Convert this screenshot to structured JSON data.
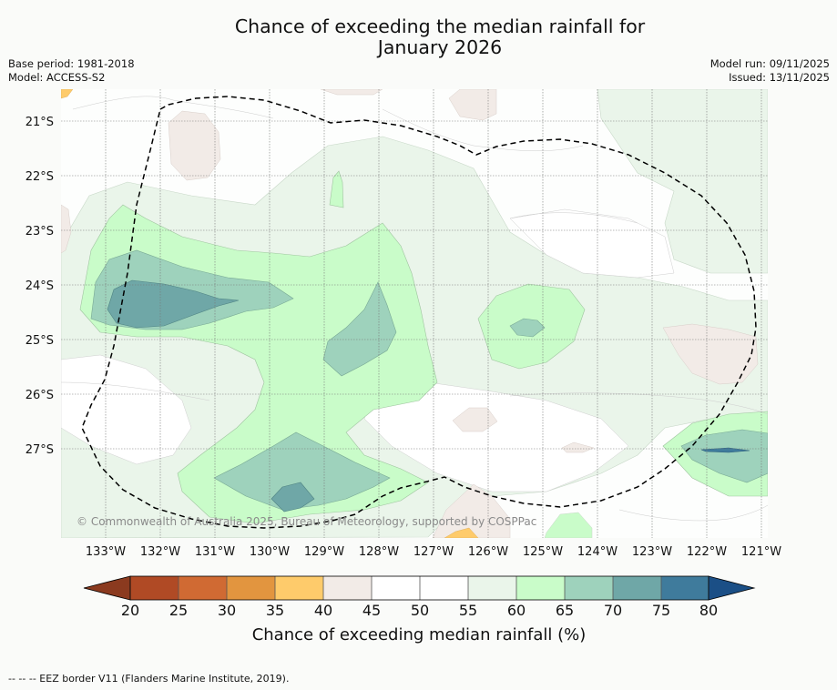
{
  "header": {
    "title_line1": "Chance of exceeding the median rainfall for",
    "title_line2": "January 2026",
    "base_period": "Base period: 1981-2018",
    "model": "Model: ACCESS-S2",
    "model_run": "Model run: 09/11/2025",
    "issued": "Issued: 13/11/2025"
  },
  "map": {
    "lat_labels": [
      "21°S",
      "22°S",
      "23°S",
      "24°S",
      "25°S",
      "26°S",
      "27°S"
    ],
    "lon_labels": [
      "133°W",
      "132°W",
      "131°W",
      "130°W",
      "129°W",
      "128°W",
      "127°W",
      "126°W",
      "125°W",
      "124°W",
      "123°W",
      "122°W",
      "121°W"
    ],
    "copyright": "© Commonwealth of Australia 2025, Bureau of Meteorology, supported by COSPPac",
    "colors": {
      "c20": "#8b3a1f",
      "c25": "#b04a25",
      "c30": "#d06a33",
      "c35": "#e2953f",
      "c40": "#fecb6b",
      "c45": "#f2ebe7",
      "c50": "#ffffff",
      "c55": "#ffffff",
      "c60": "#eaf5ea",
      "c65": "#c9fcc9",
      "c70": "#9ed2bc",
      "c75": "#6fa7a7",
      "c80": "#3f7b9c",
      "c85": "#1b4f86"
    }
  },
  "colorbar": {
    "ticks": [
      "20",
      "25",
      "30",
      "35",
      "40",
      "45",
      "50",
      "55",
      "60",
      "65",
      "70",
      "75",
      "80"
    ],
    "title": "Chance of exceeding median rainfall (%)"
  },
  "footnote": "--  --  -- EEZ border V11 (Flanders Marine Institute, 2019)."
}
